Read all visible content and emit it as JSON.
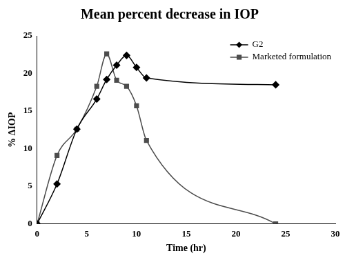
{
  "chart_data": {
    "type": "line",
    "title": "Mean percent decrease in IOP",
    "x_label": "Time (hr)",
    "y_label": "% ΔIOP",
    "series": [
      {
        "name": "G2",
        "color": "#000000",
        "marker": "diamond",
        "line_style": "solid",
        "x": [
          0,
          2,
          4,
          6,
          7,
          8,
          9,
          10,
          11,
          24
        ],
        "values": [
          0,
          5.3,
          12.6,
          16.6,
          19.2,
          21.1,
          22.4,
          20.8,
          19.4,
          18.5
        ]
      },
      {
        "name": "Marketed formulation",
        "color": "#4d4d4d",
        "marker": "square",
        "line_style": "solid",
        "x": [
          0,
          2,
          4,
          6,
          7,
          8,
          9,
          10,
          11,
          24
        ],
        "values": [
          0,
          9.1,
          12.6,
          18.3,
          22.6,
          19.1,
          18.3,
          15.7,
          11.1,
          0
        ]
      }
    ],
    "xlim": [
      0,
      30
    ],
    "xticks": [
      0,
      5,
      10,
      15,
      20,
      25,
      30
    ],
    "ylim": [
      0,
      25
    ],
    "yticks": [
      0,
      5,
      10,
      15,
      20,
      25
    ],
    "grid": false,
    "legend": "upper right"
  }
}
